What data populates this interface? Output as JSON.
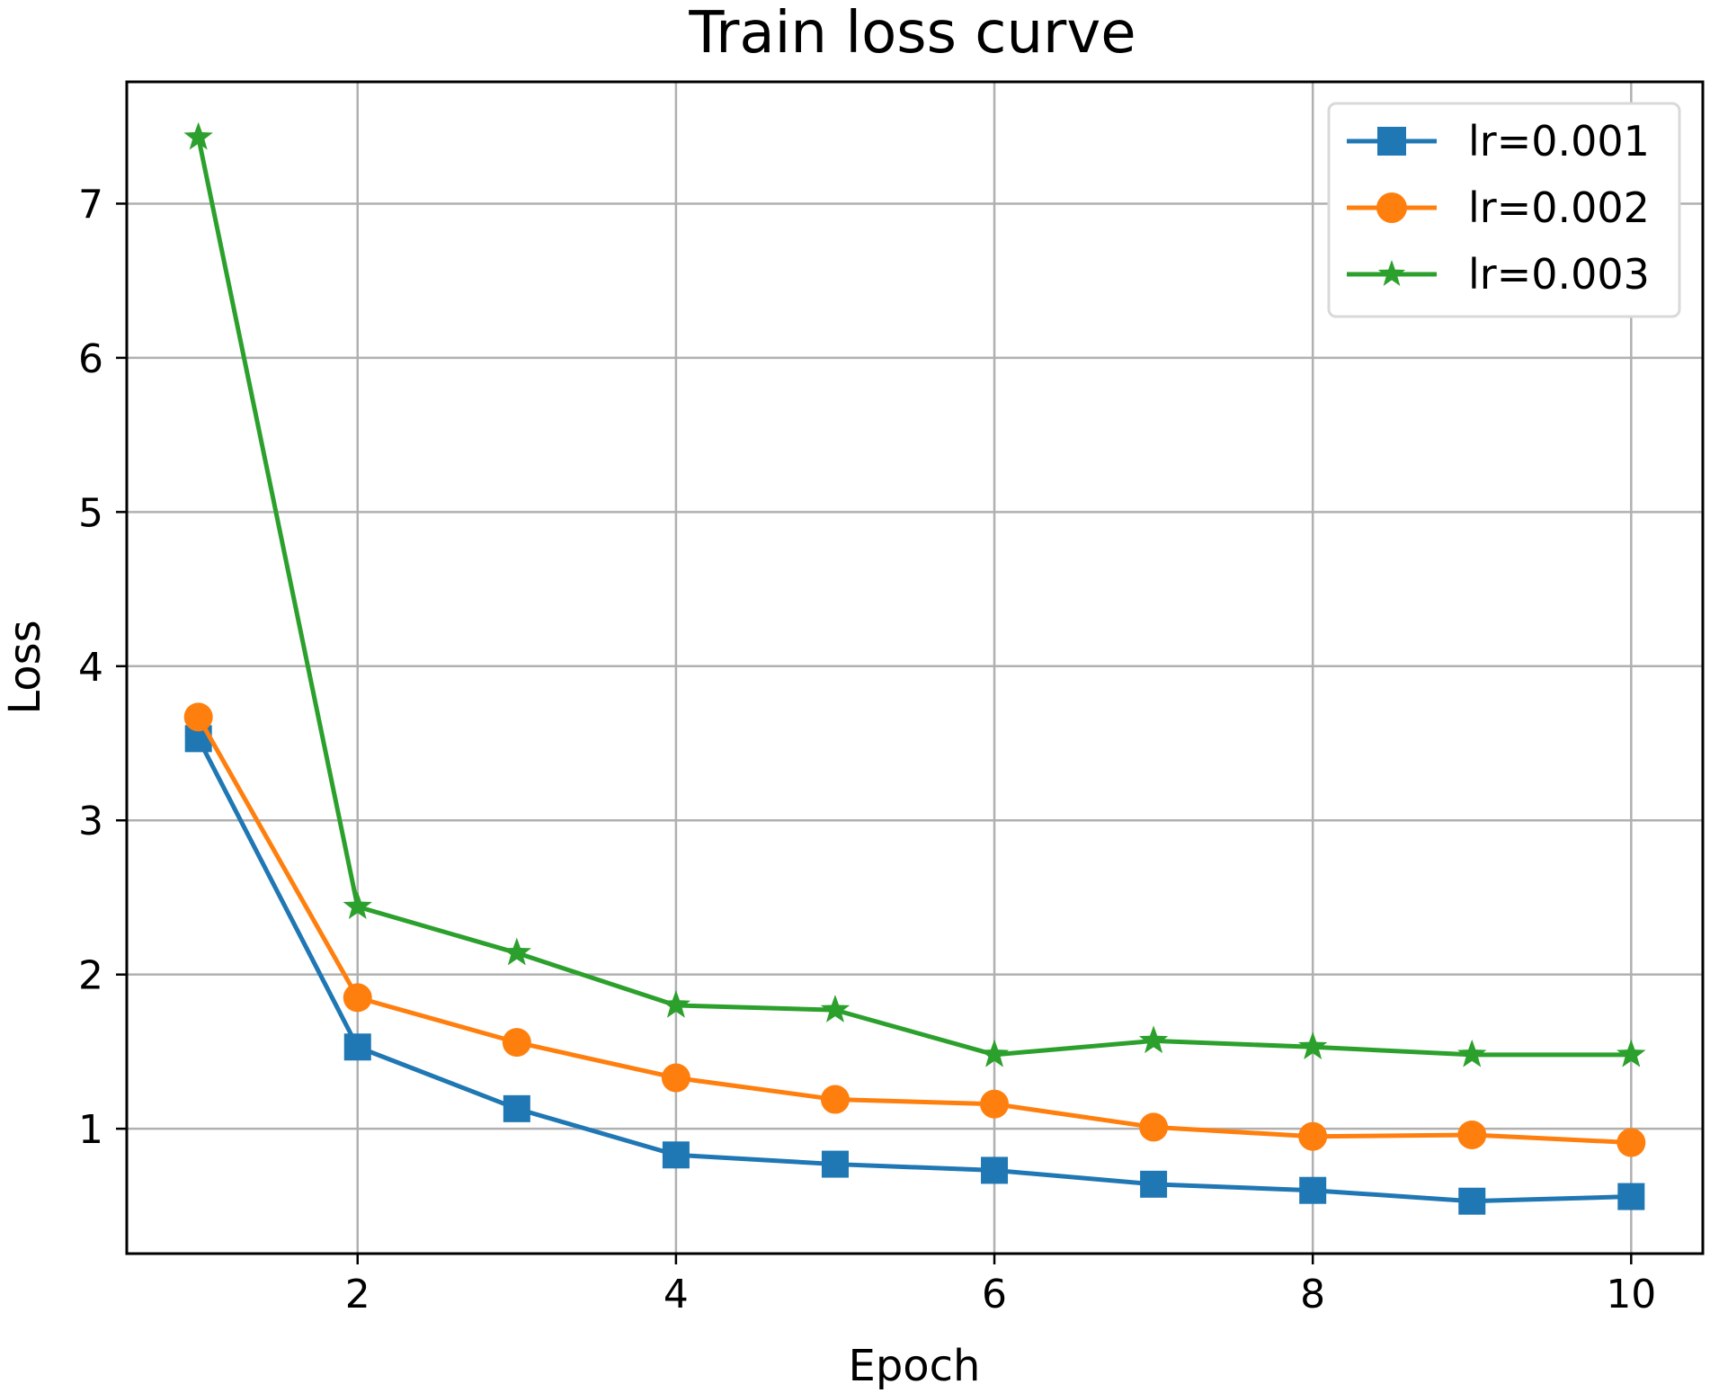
{
  "chart_data": {
    "type": "line",
    "title": "Train loss curve",
    "xlabel": "Epoch",
    "ylabel": "Loss",
    "x": [
      1,
      2,
      3,
      4,
      5,
      6,
      7,
      8,
      9,
      10
    ],
    "xlim": [
      0.55,
      10.45
    ],
    "ylim": [
      0.19,
      7.79
    ],
    "xticks": [
      2,
      4,
      6,
      8,
      10
    ],
    "yticks": [
      1,
      2,
      3,
      4,
      5,
      6,
      7
    ],
    "grid": true,
    "legend_position": "top-right",
    "series": [
      {
        "name": "lr=0.001",
        "color": "#1f77b4",
        "marker": "square",
        "values": [
          3.53,
          1.53,
          1.13,
          0.83,
          0.77,
          0.73,
          0.64,
          0.6,
          0.53,
          0.56
        ]
      },
      {
        "name": "lr=0.002",
        "color": "#ff7f0e",
        "marker": "circle",
        "values": [
          3.67,
          1.85,
          1.56,
          1.33,
          1.19,
          1.16,
          1.01,
          0.95,
          0.96,
          0.91
        ]
      },
      {
        "name": "lr=0.003",
        "color": "#2ca02c",
        "marker": "star",
        "values": [
          7.43,
          2.44,
          2.14,
          1.8,
          1.77,
          1.48,
          1.57,
          1.53,
          1.48,
          1.48
        ]
      }
    ]
  }
}
